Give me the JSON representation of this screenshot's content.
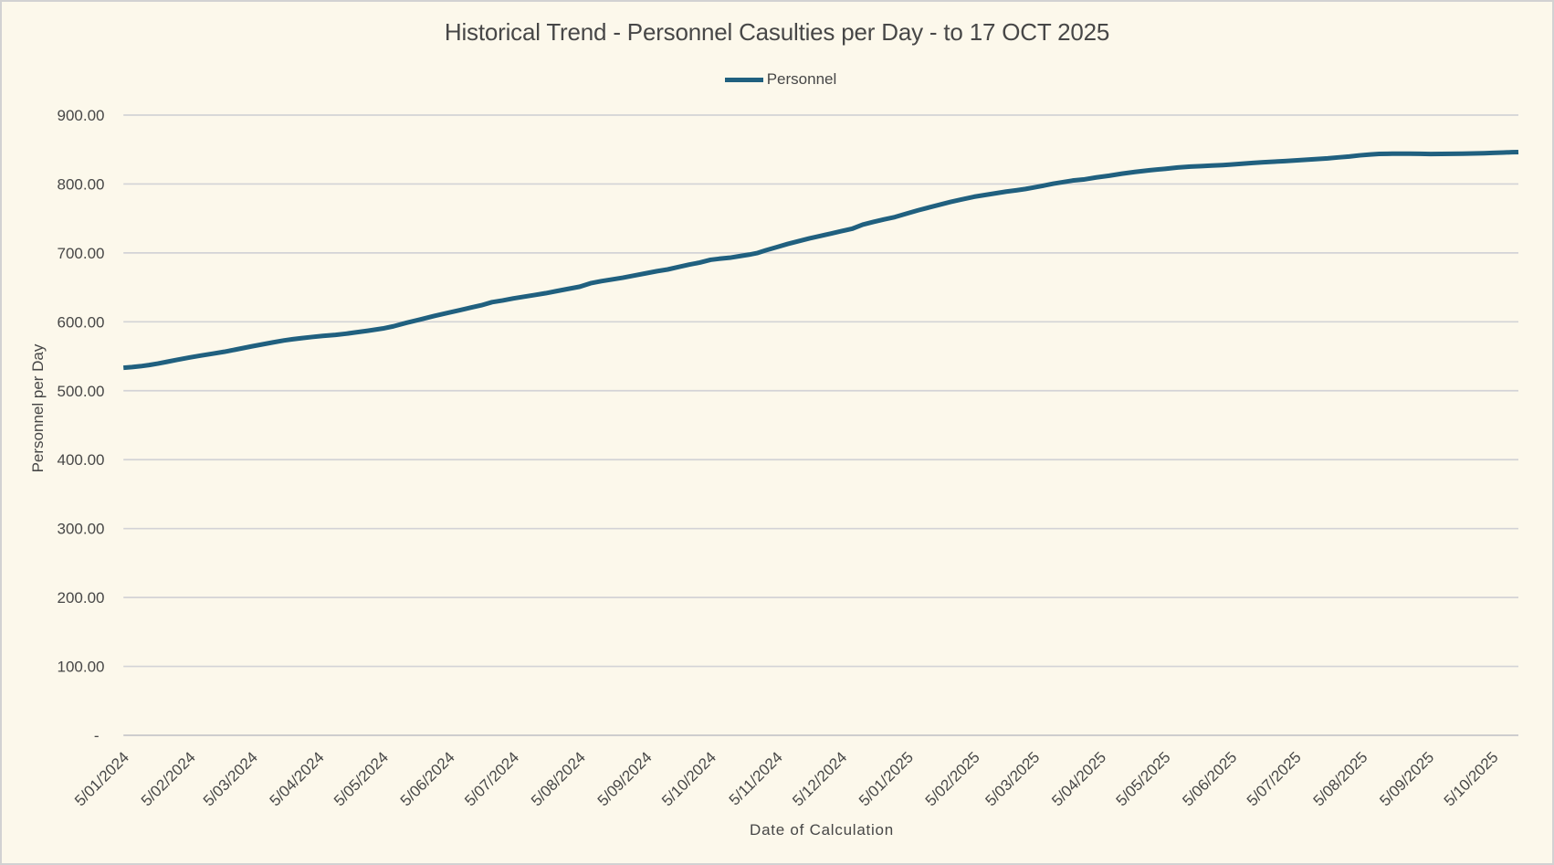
{
  "chart_data": {
    "type": "line",
    "title": "Historical Trend - Personnel Casulties per Day - to 17 OCT 2025",
    "xlabel": "Date of Calculation",
    "ylabel": "Personnel per Day",
    "legend_position": "top-center",
    "grid": "horizontal",
    "ylim": [
      0,
      900
    ],
    "y_tick_step": 100,
    "y_tick_labels": [
      "900.00",
      "800.00",
      "700.00",
      "600.00",
      "500.00",
      "400.00",
      "300.00",
      "200.00",
      "100.00",
      "-"
    ],
    "y_tick_values": [
      900,
      800,
      700,
      600,
      500,
      400,
      300,
      200,
      100,
      0
    ],
    "x_tick_labels": [
      "5/01/2024",
      "5/02/2024",
      "5/03/2024",
      "5/04/2024",
      "5/05/2024",
      "5/06/2024",
      "5/07/2024",
      "5/08/2024",
      "5/09/2024",
      "5/10/2024",
      "5/11/2024",
      "5/12/2024",
      "5/01/2025",
      "5/02/2025",
      "5/03/2025",
      "5/04/2025",
      "5/05/2025",
      "5/06/2025",
      "5/07/2025",
      "5/08/2025",
      "5/09/2025",
      "5/10/2025"
    ],
    "x_tick_days": [
      0,
      31,
      60,
      91,
      121,
      152,
      182,
      213,
      244,
      274,
      305,
      335,
      366,
      397,
      425,
      456,
      486,
      517,
      547,
      578,
      609,
      639
    ],
    "x_domain_days": [
      0,
      651
    ],
    "series": [
      {
        "name": "Personnel",
        "color": "#20607F",
        "points": [
          [
            0,
            533.3
          ],
          [
            4,
            534.3
          ],
          [
            8,
            535.6
          ],
          [
            12,
            537.3
          ],
          [
            16,
            539.4
          ],
          [
            20,
            541.8
          ],
          [
            25,
            544.8
          ],
          [
            31,
            548.3
          ],
          [
            36,
            551
          ],
          [
            42,
            554
          ],
          [
            47,
            556.5
          ],
          [
            52,
            559.5
          ],
          [
            56,
            562
          ],
          [
            60,
            564.5
          ],
          [
            64,
            566.8
          ],
          [
            70,
            570.3
          ],
          [
            75,
            573
          ],
          [
            79,
            574.8
          ],
          [
            83,
            576.3
          ],
          [
            88,
            578
          ],
          [
            93,
            579.6
          ],
          [
            99,
            581
          ],
          [
            104,
            582.8
          ],
          [
            108,
            584.5
          ],
          [
            114,
            587
          ],
          [
            121,
            590.3
          ],
          [
            126,
            593.5
          ],
          [
            132,
            598.5
          ],
          [
            138,
            603
          ],
          [
            145,
            608.5
          ],
          [
            152,
            613.5
          ],
          [
            157,
            617
          ],
          [
            162,
            620.5
          ],
          [
            167,
            624
          ],
          [
            172,
            628.5
          ],
          [
            177,
            631
          ],
          [
            182,
            634
          ],
          [
            187,
            636.5
          ],
          [
            192,
            639
          ],
          [
            197,
            641.5
          ],
          [
            202,
            644.5
          ],
          [
            207,
            647.5
          ],
          [
            213,
            651
          ],
          [
            218,
            656
          ],
          [
            223,
            659
          ],
          [
            228,
            661.5
          ],
          [
            233,
            664
          ],
          [
            238,
            667
          ],
          [
            244,
            670.5
          ],
          [
            249,
            673.5
          ],
          [
            254,
            676
          ],
          [
            259,
            679.5
          ],
          [
            264,
            683
          ],
          [
            269,
            686
          ],
          [
            274,
            690
          ],
          [
            278,
            691.5
          ],
          [
            283,
            693
          ],
          [
            288,
            695.5
          ],
          [
            292,
            697.5
          ],
          [
            296,
            700
          ],
          [
            300,
            704
          ],
          [
            305,
            708.5
          ],
          [
            310,
            713
          ],
          [
            315,
            717
          ],
          [
            320,
            721
          ],
          [
            325,
            724.5
          ],
          [
            330,
            728
          ],
          [
            335,
            731.5
          ],
          [
            340,
            735
          ],
          [
            345,
            741
          ],
          [
            350,
            745
          ],
          [
            355,
            748.7
          ],
          [
            360,
            752
          ],
          [
            366,
            757.5
          ],
          [
            371,
            762
          ],
          [
            376,
            766
          ],
          [
            381,
            770
          ],
          [
            386,
            774
          ],
          [
            391,
            777.5
          ],
          [
            397,
            781.5
          ],
          [
            402,
            784
          ],
          [
            407,
            786.5
          ],
          [
            412,
            789
          ],
          [
            417,
            791
          ],
          [
            421,
            792.8
          ],
          [
            425,
            795
          ],
          [
            430,
            798
          ],
          [
            434,
            800.5
          ],
          [
            438,
            802.5
          ],
          [
            443,
            805
          ],
          [
            448,
            806.5
          ],
          [
            454,
            809.5
          ],
          [
            460,
            812
          ],
          [
            466,
            815
          ],
          [
            472,
            817.5
          ],
          [
            479,
            820
          ],
          [
            486,
            822
          ],
          [
            492,
            824
          ],
          [
            498,
            825.3
          ],
          [
            503,
            826
          ],
          [
            508,
            826.8
          ],
          [
            513,
            827.5
          ],
          [
            517,
            828.2
          ],
          [
            522,
            829.4
          ],
          [
            527,
            830.5
          ],
          [
            532,
            831.5
          ],
          [
            537,
            832.4
          ],
          [
            542,
            833.3
          ],
          [
            547,
            834.2
          ],
          [
            552,
            835.2
          ],
          [
            557,
            836.2
          ],
          [
            562,
            837.2
          ],
          [
            567,
            838.6
          ],
          [
            572,
            839.8
          ],
          [
            577,
            841.6
          ],
          [
            582,
            842.9
          ],
          [
            586,
            843.6
          ],
          [
            590,
            843.9
          ],
          [
            595,
            844
          ],
          [
            600,
            844
          ],
          [
            605,
            843.8
          ],
          [
            610,
            843.5
          ],
          [
            615,
            843.6
          ],
          [
            620,
            843.8
          ],
          [
            625,
            844
          ],
          [
            630,
            844.3
          ],
          [
            635,
            844.7
          ],
          [
            639,
            845.1
          ],
          [
            644,
            845.7
          ],
          [
            648,
            846.1
          ],
          [
            651,
            846.4
          ]
        ]
      }
    ]
  },
  "colors": {
    "background": "#FCF8EB",
    "border": "#D2D2D2",
    "gridline": "#D3D3D6",
    "axis_line": "#C7C7CA",
    "text": "#474747",
    "series_line": "#20607F"
  }
}
